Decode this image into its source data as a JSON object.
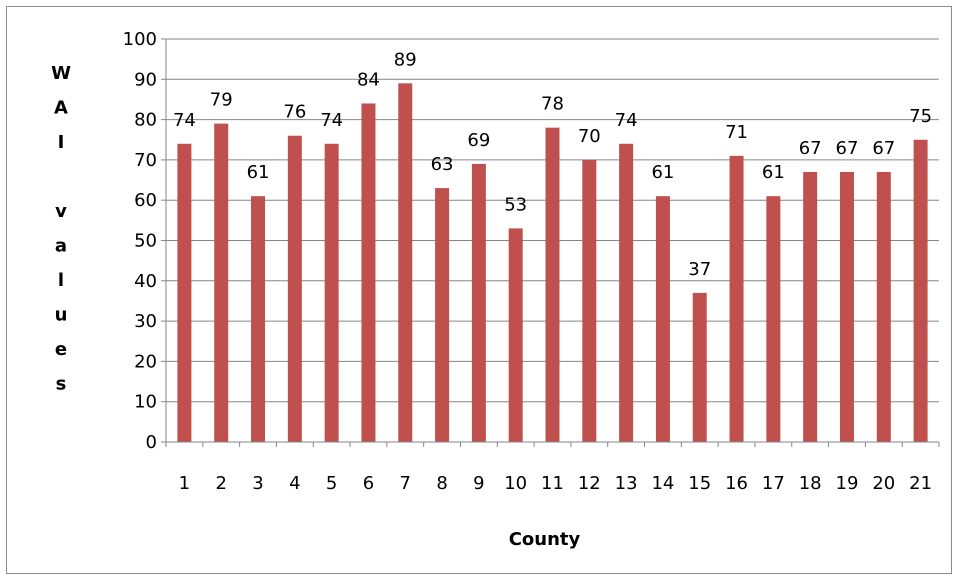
{
  "chart_data": {
    "type": "bar",
    "categories": [
      "1",
      "2",
      "3",
      "4",
      "5",
      "6",
      "7",
      "8",
      "9",
      "10",
      "11",
      "12",
      "13",
      "14",
      "15",
      "16",
      "17",
      "18",
      "19",
      "20",
      "21"
    ],
    "values": [
      74,
      79,
      61,
      76,
      74,
      84,
      89,
      63,
      69,
      53,
      78,
      70,
      74,
      61,
      37,
      71,
      61,
      67,
      67,
      67,
      75
    ],
    "title": "",
    "xlabel": "County",
    "ylabel": "WAI values",
    "ylabel_vertical_chars": [
      "W",
      "A",
      "I",
      "",
      "v",
      "a",
      "l",
      "u",
      "e",
      "s"
    ],
    "ylim": [
      0,
      100
    ],
    "yticks": [
      0,
      10,
      20,
      30,
      40,
      50,
      60,
      70,
      80,
      90,
      100
    ],
    "grid": true,
    "legend": "none",
    "data_labels": true,
    "colors": {
      "bar": "#c0504d",
      "grid": "#868686",
      "axis": "#868686",
      "frame": "#8c8c8c"
    }
  }
}
